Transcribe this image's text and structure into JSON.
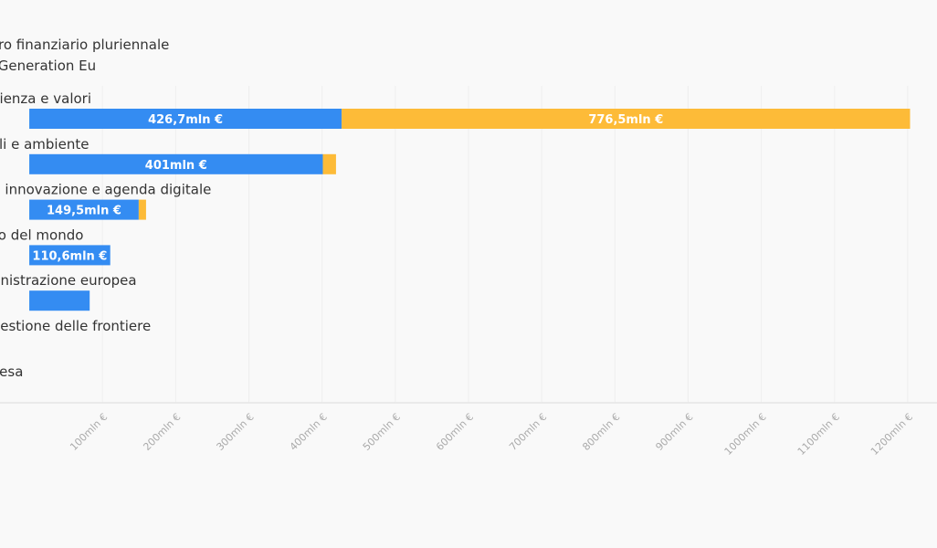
{
  "chart_data": {
    "type": "bar",
    "orientation": "horizontal",
    "stacked": true,
    "categories": [
      "Coesione, resilienza e valori",
      "Risorse naturali e ambiente",
      "Mercato unico, innovazione e agenda digitale",
      "Vicinato e resto del mondo",
      "Pubblica amministrazione europea",
      "Migrazione e gestione delle frontiere",
      "Sicurezza e difesa"
    ],
    "series": [
      {
        "name": "Quadro finanziario pluriennale",
        "color": "#348cf2",
        "values": [
          426.7,
          401,
          149.5,
          110.6,
          82.5,
          0,
          0
        ],
        "labels": [
          "426,7mln €",
          "401mln €",
          "149,5mln €",
          "110,6mln €",
          "",
          "",
          ""
        ]
      },
      {
        "name": "Next Generation Eu",
        "color": "#fdbb38",
        "values": [
          776.5,
          18,
          10,
          0,
          0,
          0,
          0
        ],
        "labels": [
          "776,5mln €",
          "",
          "",
          "",
          "",
          "",
          ""
        ]
      }
    ],
    "xlim": [
      -40,
      1240
    ],
    "xticks": [
      100,
      200,
      300,
      400,
      500,
      600,
      700,
      800,
      900,
      1000,
      1100,
      1200
    ],
    "xtick_labels": [
      "100mln €",
      "200mln €",
      "300mln €",
      "400mln €",
      "500mln €",
      "600mln €",
      "700mln €",
      "800mln €",
      "900mln €",
      "1000mln €",
      "1100mln €",
      "1200mln €"
    ],
    "grid": true,
    "legend": "top-left"
  }
}
